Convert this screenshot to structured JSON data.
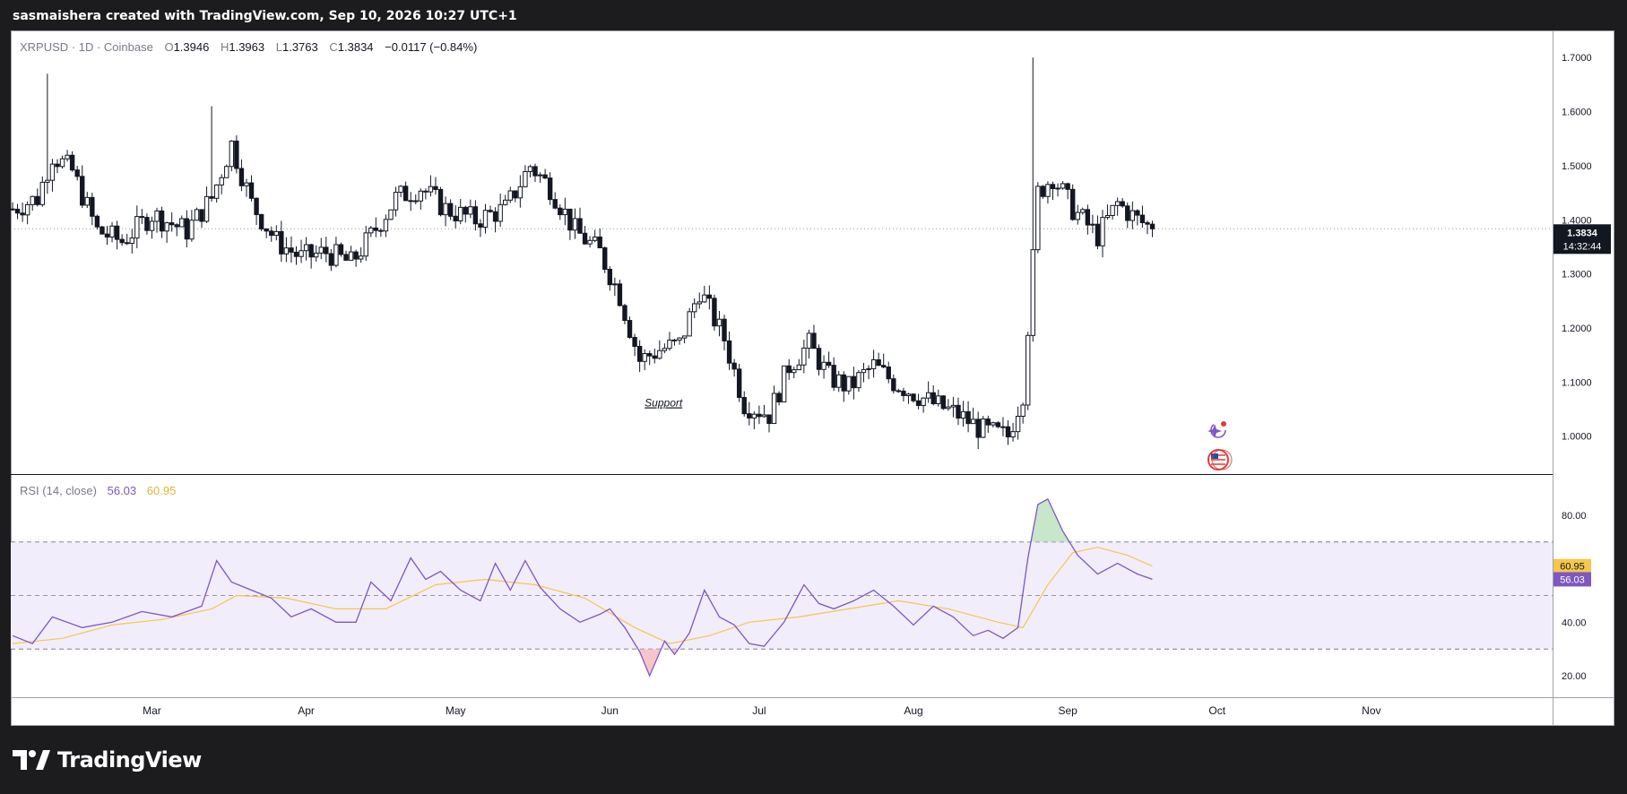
{
  "header": {
    "credit": "sasmaishera created with TradingView.com, Sep 10, 2026 10:27 UTC+1"
  },
  "legend": {
    "symbol": "XRPUSD · 1D · Coinbase",
    "open_label": "O",
    "open": "1.3946",
    "high_label": "H",
    "high": "1.3963",
    "low_label": "L",
    "low": "1.3763",
    "close_label": "C",
    "close": "1.3834",
    "change": "−0.0117 (−0.84%)"
  },
  "price_badge": {
    "value": "1.3834",
    "countdown": "14:32:44"
  },
  "annotation": {
    "text": "Support"
  },
  "rsi": {
    "title": "RSI (14, close)",
    "rsi_value": "56.03",
    "ma_value": "60.95",
    "overbought": 70,
    "oversold": 30,
    "mid": 50
  },
  "footer": {
    "brand": "TradingView",
    "logo_icon": "tradingview-logo-icon"
  },
  "colors": {
    "background": "#1c1c1e",
    "panel": "#ffffff",
    "candle": "#131722",
    "rsi_line": "#7e57c2",
    "rsi_ma": "#f5c74a",
    "rsi_band": "#f1edfb",
    "rsi_overbought_fill": "#c8e6c9",
    "rsi_oversold_fill": "#f8c4cc",
    "price_badge": "#131722",
    "rsi_badge": "#7e57c2",
    "ma_badge": "#f5c74a"
  },
  "chart_data": [
    {
      "type": "candlestick",
      "symbol": "XRPUSD",
      "interval": "1D",
      "exchange": "Coinbase",
      "ylim": [
        0.93,
        1.75
      ],
      "price_ticks": [
        "1.7000",
        "1.6000",
        "1.5000",
        "1.4000",
        "1.3000",
        "1.2000",
        "1.1000",
        "1.0000"
      ],
      "price_tick_values": [
        1.7,
        1.6,
        1.5,
        1.4,
        1.3,
        1.2,
        1.1,
        1.0
      ],
      "x_ticks": [
        "Mar",
        "Apr",
        "May",
        "Jun",
        "Jul",
        "Aug",
        "Sep",
        "Oct",
        "Nov"
      ],
      "x_tick_days": [
        28,
        59,
        89,
        120,
        150,
        181,
        212,
        242,
        273
      ],
      "first_day": 0,
      "last_day": 295,
      "last_close": 1.3834,
      "waypoints": [
        [
          0,
          1.42
        ],
        [
          5,
          1.44
        ],
        [
          8,
          1.52
        ],
        [
          12,
          1.49
        ],
        [
          17,
          1.38
        ],
        [
          22,
          1.36
        ],
        [
          28,
          1.41
        ],
        [
          35,
          1.38
        ],
        [
          40,
          1.44
        ],
        [
          44,
          1.54
        ],
        [
          48,
          1.43
        ],
        [
          53,
          1.36
        ],
        [
          58,
          1.33
        ],
        [
          63,
          1.34
        ],
        [
          68,
          1.32
        ],
        [
          72,
          1.37
        ],
        [
          77,
          1.44
        ],
        [
          82,
          1.46
        ],
        [
          87,
          1.42
        ],
        [
          93,
          1.4
        ],
        [
          99,
          1.42
        ],
        [
          104,
          1.5
        ],
        [
          108,
          1.46
        ],
        [
          113,
          1.38
        ],
        [
          118,
          1.34
        ],
        [
          122,
          1.26
        ],
        [
          126,
          1.14
        ],
        [
          130,
          1.16
        ],
        [
          134,
          1.17
        ],
        [
          138,
          1.27
        ],
        [
          143,
          1.18
        ],
        [
          147,
          1.06
        ],
        [
          152,
          1.04
        ],
        [
          156,
          1.13
        ],
        [
          160,
          1.17
        ],
        [
          164,
          1.11
        ],
        [
          168,
          1.09
        ],
        [
          173,
          1.13
        ],
        [
          177,
          1.1
        ],
        [
          181,
          1.08
        ],
        [
          185,
          1.06
        ],
        [
          190,
          1.04
        ],
        [
          195,
          1.01
        ],
        [
          200,
          1.0
        ],
        [
          203,
          1.08
        ],
        [
          206,
          1.45
        ],
        [
          209,
          1.48
        ],
        [
          213,
          1.42
        ],
        [
          218,
          1.37
        ],
        [
          222,
          1.43
        ],
        [
          226,
          1.4
        ],
        [
          229,
          1.3834
        ]
      ],
      "notable_candles": [
        {
          "day": 7,
          "high": 1.67
        },
        {
          "day": 40,
          "high": 1.61
        },
        {
          "day": 201,
          "low": 0.99
        },
        {
          "day": 205,
          "high": 1.7
        }
      ],
      "annotation": {
        "day": 127,
        "price": 1.055,
        "text": "Support"
      }
    },
    {
      "type": "line",
      "name": "RSI (14, close)",
      "ylim": [
        12,
        95
      ],
      "ticks": [
        "80.00",
        "40.00",
        "20.00"
      ],
      "tick_values": [
        80,
        40,
        20
      ],
      "bands": {
        "overbought": 70,
        "mid": 50,
        "oversold": 30
      },
      "series": [
        {
          "id": "rsi",
          "last": 56.03,
          "color": "#7e57c2",
          "points": [
            [
              0,
              35
            ],
            [
              4,
              32
            ],
            [
              8,
              42
            ],
            [
              14,
              38
            ],
            [
              20,
              40
            ],
            [
              26,
              44
            ],
            [
              32,
              42
            ],
            [
              38,
              46
            ],
            [
              41,
              63
            ],
            [
              44,
              55
            ],
            [
              48,
              52
            ],
            [
              52,
              49
            ],
            [
              56,
              42
            ],
            [
              60,
              45
            ],
            [
              65,
              40
            ],
            [
              69,
              40
            ],
            [
              72,
              55
            ],
            [
              76,
              48
            ],
            [
              80,
              64
            ],
            [
              83,
              56
            ],
            [
              86,
              59
            ],
            [
              90,
              52
            ],
            [
              94,
              48
            ],
            [
              97,
              62
            ],
            [
              100,
              52
            ],
            [
              103,
              63
            ],
            [
              106,
              53
            ],
            [
              110,
              45
            ],
            [
              114,
              40
            ],
            [
              118,
              43
            ],
            [
              120,
              45
            ],
            [
              123,
              38
            ],
            [
              126,
              29
            ],
            [
              128,
              20
            ],
            [
              131,
              33
            ],
            [
              133,
              28
            ],
            [
              136,
              36
            ],
            [
              139,
              52
            ],
            [
              142,
              42
            ],
            [
              145,
              39
            ],
            [
              148,
              32
            ],
            [
              151,
              31
            ],
            [
              155,
              40
            ],
            [
              159,
              54
            ],
            [
              162,
              47
            ],
            [
              165,
              45
            ],
            [
              169,
              48
            ],
            [
              173,
              52
            ],
            [
              177,
              46
            ],
            [
              181,
              39
            ],
            [
              185,
              46
            ],
            [
              189,
              42
            ],
            [
              193,
              35
            ],
            [
              196,
              37
            ],
            [
              199,
              34
            ],
            [
              202,
              38
            ],
            [
              204,
              64
            ],
            [
              206,
              84
            ],
            [
              208,
              86
            ],
            [
              211,
              74
            ],
            [
              214,
              65
            ],
            [
              218,
              58
            ],
            [
              222,
              62
            ],
            [
              226,
              58
            ],
            [
              229,
              56.03
            ]
          ]
        },
        {
          "id": "rsi_ma",
          "last": 60.95,
          "color": "#f5c74a",
          "points": [
            [
              0,
              32
            ],
            [
              10,
              34
            ],
            [
              20,
              39
            ],
            [
              30,
              41
            ],
            [
              40,
              45
            ],
            [
              45,
              50
            ],
            [
              55,
              49
            ],
            [
              65,
              45
            ],
            [
              75,
              45
            ],
            [
              85,
              54
            ],
            [
              95,
              56
            ],
            [
              105,
              54
            ],
            [
              115,
              49
            ],
            [
              125,
              38
            ],
            [
              132,
              32
            ],
            [
              140,
              35
            ],
            [
              148,
              40
            ],
            [
              158,
              42
            ],
            [
              168,
              45
            ],
            [
              178,
              48
            ],
            [
              188,
              45
            ],
            [
              198,
              40
            ],
            [
              203,
              38
            ],
            [
              208,
              54
            ],
            [
              213,
              66
            ],
            [
              218,
              68
            ],
            [
              224,
              65
            ],
            [
              229,
              60.95
            ]
          ]
        }
      ]
    }
  ]
}
